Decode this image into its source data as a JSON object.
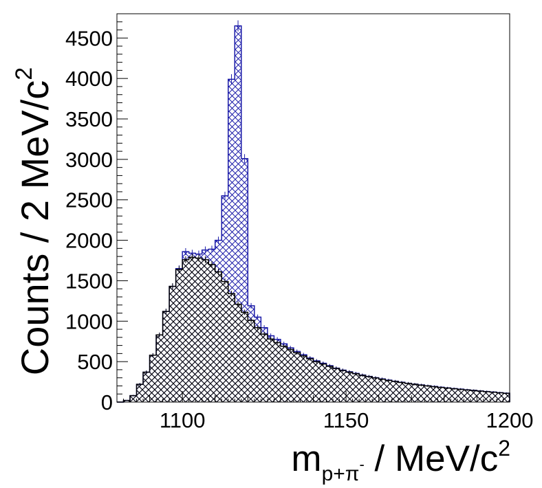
{
  "chart_data": {
    "type": "histogram",
    "xlabel": {
      "main": "m",
      "sub": "p+π",
      "sup_on_sub": "-",
      "rest": " / MeV/c",
      "sup": "2"
    },
    "ylabel": {
      "main": "Counts / 2 MeV/c",
      "sup": "2"
    },
    "xlim": [
      1080,
      1200
    ],
    "ylim": [
      0,
      4800
    ],
    "bin_width": 2,
    "x_ticks": [
      1100,
      1150,
      1200
    ],
    "x_tick_labels": [
      "1100",
      "1150",
      "1200"
    ],
    "y_ticks": [
      0,
      500,
      1000,
      1500,
      2000,
      2500,
      3000,
      3500,
      4000,
      4500
    ],
    "y_tick_labels": [
      "0",
      "500",
      "1000",
      "1500",
      "2000",
      "2500",
      "3000",
      "3500",
      "4000",
      "4500"
    ],
    "bin_edges_start": 1080,
    "series": [
      {
        "role": "total",
        "color": "#1a1aa8",
        "hatch": "crosshatch",
        "values": [
          0,
          20,
          80,
          220,
          370,
          580,
          830,
          1120,
          1430,
          1650,
          1860,
          1840,
          1830,
          1880,
          1890,
          2000,
          2550,
          3990,
          4650,
          3010,
          1190,
          1050,
          920,
          820,
          775,
          720,
          670,
          625,
          585,
          545,
          510,
          480,
          450,
          420,
          395,
          375,
          355,
          335,
          318,
          302,
          287,
          272,
          258,
          245,
          233,
          222,
          212,
          202,
          193,
          184,
          175,
          167,
          160,
          152,
          145,
          138,
          131,
          124,
          117,
          110
        ]
      },
      {
        "role": "background",
        "color": "#000000",
        "hatch": "crosshatch",
        "values": [
          0,
          20,
          80,
          220,
          370,
          580,
          830,
          1120,
          1430,
          1640,
          1760,
          1790,
          1780,
          1760,
          1700,
          1610,
          1490,
          1340,
          1210,
          1110,
          1010,
          920,
          840,
          780,
          735,
          690,
          650,
          610,
          570,
          535,
          500,
          470,
          442,
          415,
          390,
          370,
          350,
          330,
          314,
          298,
          283,
          268,
          255,
          242,
          230,
          220,
          209,
          200,
          190,
          181,
          173,
          165,
          157,
          150,
          143,
          136,
          129,
          122,
          115,
          108
        ]
      }
    ]
  }
}
